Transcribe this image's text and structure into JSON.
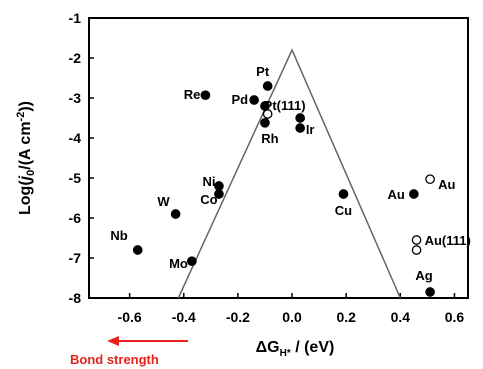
{
  "chart_data": {
    "type": "scatter",
    "xlim": [
      -0.75,
      0.65
    ],
    "ylim": [
      -8,
      -1
    ],
    "xticks": [
      "-0.6",
      "-0.4",
      "-0.2",
      "0.0",
      "0.2",
      "0.4",
      "0.6"
    ],
    "xtick_values": [
      -0.6,
      -0.4,
      -0.2,
      0.0,
      0.2,
      0.4,
      0.6
    ],
    "yticks": [
      "-8",
      "-7",
      "-6",
      "-5",
      "-4",
      "-3",
      "-2",
      "-1"
    ],
    "ytick_values": [
      -8,
      -7,
      -6,
      -5,
      -4,
      -3,
      -2,
      -1
    ],
    "ylabel_main": "Log(",
    "ylabel_j": "j",
    "ylabel_sub0": "0",
    "ylabel_unit": "/(A cm",
    "ylabel_sup": "-2",
    "ylabel_end": "))",
    "xlabel_main": "ΔG",
    "xlabel_sub": "H*",
    "xlabel_unit": " / (eV)",
    "annotation": "Bond strength",
    "annotation_color": "#e8231d",
    "volcano": [
      [
        -0.42,
        -8
      ],
      [
        0.0,
        -1.8
      ],
      [
        0.4,
        -8
      ]
    ],
    "points": [
      {
        "label": "Pt",
        "x": -0.09,
        "y": -2.7,
        "filled": true
      },
      {
        "label": "Re",
        "x": -0.32,
        "y": -2.93,
        "filled": true
      },
      {
        "label": "Pd",
        "x": -0.14,
        "y": -3.05,
        "filled": true
      },
      {
        "label": "",
        "x": -0.1,
        "y": -3.2,
        "filled": true
      },
      {
        "label": "Pt(111)",
        "x": -0.09,
        "y": -3.4,
        "filled": false
      },
      {
        "label": "Rh",
        "x": -0.1,
        "y": -3.62,
        "filled": true
      },
      {
        "label": "Ir",
        "x": 0.03,
        "y": -3.5,
        "filled": true
      },
      {
        "label": "",
        "x": 0.03,
        "y": -3.75,
        "filled": true
      },
      {
        "label": "Ni",
        "x": -0.27,
        "y": -5.2,
        "filled": true
      },
      {
        "label": "Co",
        "x": -0.27,
        "y": -5.4,
        "filled": true
      },
      {
        "label": "W",
        "x": -0.43,
        "y": -5.9,
        "filled": true
      },
      {
        "label": "Nb",
        "x": -0.57,
        "y": -6.8,
        "filled": true
      },
      {
        "label": "Mo",
        "x": -0.37,
        "y": -7.08,
        "filled": true
      },
      {
        "label": "Cu",
        "x": 0.19,
        "y": -5.4,
        "filled": true
      },
      {
        "label": "Au",
        "x": 0.45,
        "y": -5.4,
        "filled": true
      },
      {
        "label": "Au",
        "x": 0.51,
        "y": -5.03,
        "filled": false
      },
      {
        "label": "Au(111)",
        "x": 0.46,
        "y": -6.55,
        "filled": false
      },
      {
        "label": "",
        "x": 0.46,
        "y": -6.8,
        "filled": false
      },
      {
        "label": "Ag",
        "x": 0.51,
        "y": -7.85,
        "filled": true
      }
    ]
  }
}
